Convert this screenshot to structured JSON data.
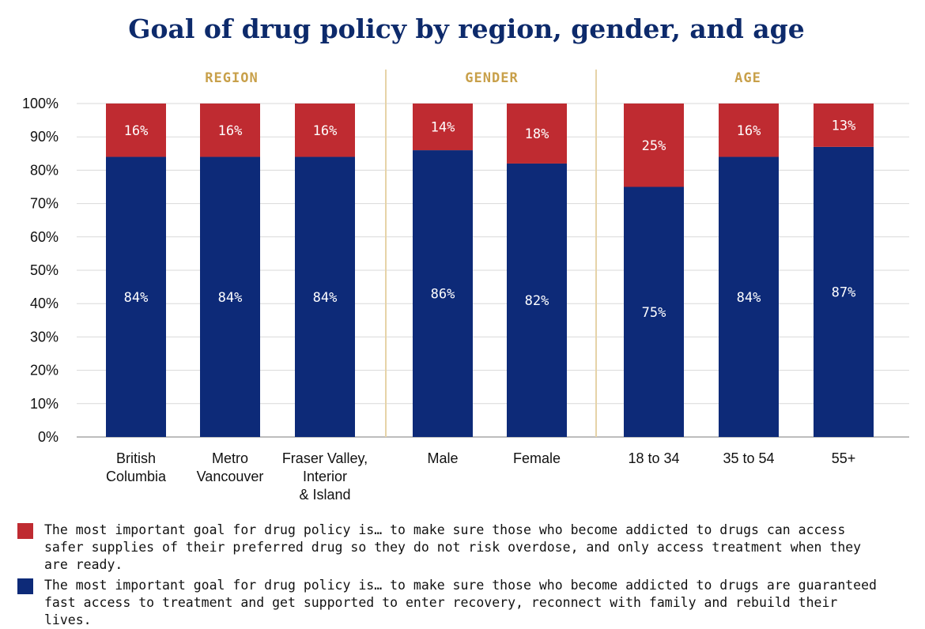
{
  "chart_data": {
    "type": "bar",
    "stacked": true,
    "title": "Goal of drug policy by region, gender, and age",
    "groups": [
      {
        "label": "REGION",
        "categories": [
          "British Columbia",
          "Metro Vancouver",
          "Fraser Valley, Interior & Island"
        ]
      },
      {
        "label": "GENDER",
        "categories": [
          "Male",
          "Female"
        ]
      },
      {
        "label": "AGE",
        "categories": [
          "18 to 34",
          "35 to 54",
          "55+"
        ]
      }
    ],
    "categories": [
      [
        "British",
        "Columbia"
      ],
      [
        "Metro",
        "Vancouver"
      ],
      [
        "Fraser Valley,",
        "Interior",
        "& Island"
      ],
      [
        "Male"
      ],
      [
        "Female"
      ],
      [
        "18 to 34"
      ],
      [
        "35 to 54"
      ],
      [
        "55+"
      ]
    ],
    "series": [
      {
        "values": [
          84,
          84,
          84,
          86,
          82,
          75,
          84,
          87
        ],
        "labels": [
          "84%",
          "84%",
          "84%",
          "86%",
          "82%",
          "75%",
          "84%",
          "87%"
        ],
        "color": "#0d2a78"
      },
      {
        "values": [
          16,
          16,
          16,
          14,
          18,
          25,
          16,
          13
        ],
        "labels": [
          "16%",
          "16%",
          "16%",
          "14%",
          "18%",
          "25%",
          "16%",
          "13%"
        ],
        "color": "#bf2b31"
      }
    ],
    "ylim": [
      0,
      100
    ],
    "yticks": [
      "0%",
      "10%",
      "20%",
      "30%",
      "40%",
      "50%",
      "60%",
      "70%",
      "80%",
      "90%",
      "100%"
    ],
    "grid": true,
    "legend_position": "bottom"
  },
  "legend": {
    "items": [
      {
        "text": "The most important goal for drug policy is… to make sure those who become addicted to drugs can access safer supplies of their preferred drug so they do not risk overdose, and only access treatment when they are ready.",
        "color": "#bf2b31"
      },
      {
        "text": "The most important goal for drug policy is… to make sure those who become addicted to drugs are guaranteed fast access to treatment and get supported to enter recovery, reconnect with family and rebuild their lives.",
        "color": "#0d2a78"
      }
    ]
  }
}
